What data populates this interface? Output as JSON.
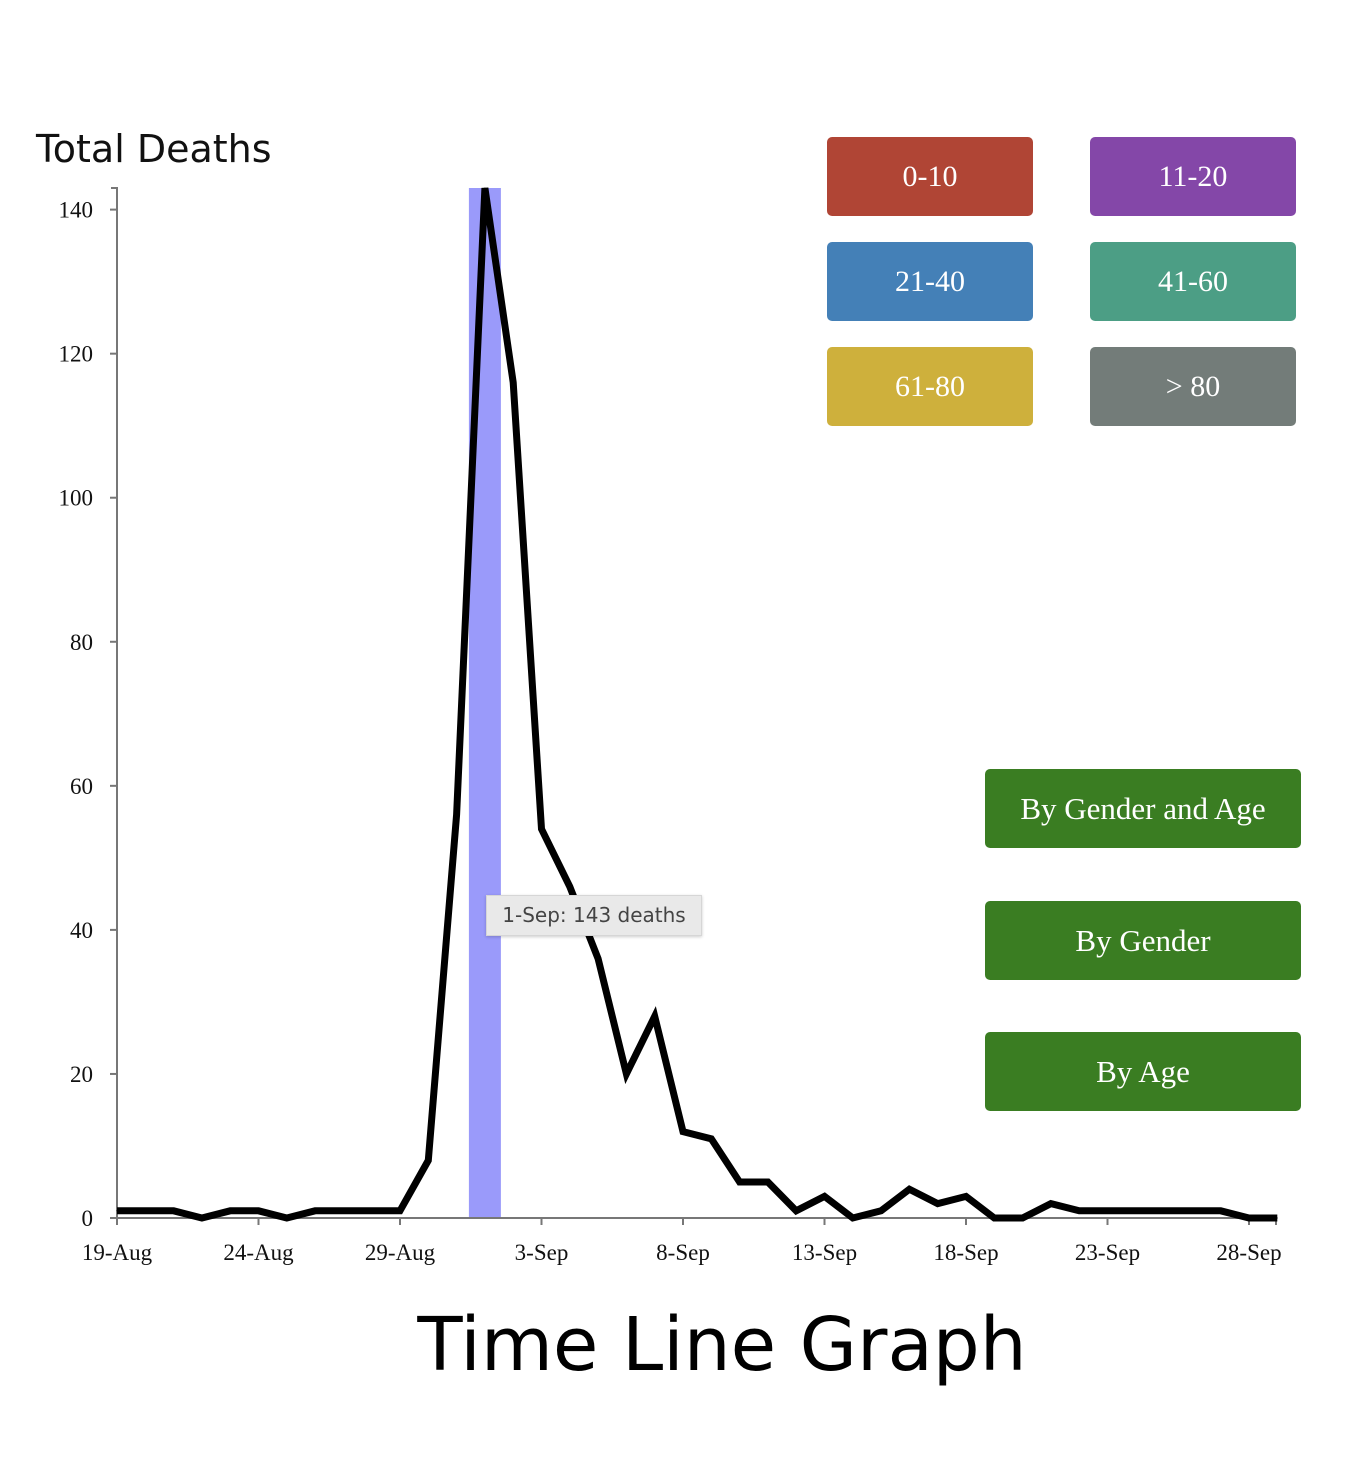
{
  "chart_data": {
    "type": "line",
    "ylabel": "Total Deaths",
    "ylim": [
      0,
      143
    ],
    "yticks": [
      0,
      20,
      40,
      60,
      80,
      100,
      120,
      140
    ],
    "xticks": [
      "19-Aug",
      "24-Aug",
      "29-Aug",
      "3-Sep",
      "8-Sep",
      "13-Sep",
      "18-Sep",
      "23-Sep",
      "28-Sep"
    ],
    "x": [
      "19-Aug",
      "20-Aug",
      "21-Aug",
      "22-Aug",
      "23-Aug",
      "24-Aug",
      "25-Aug",
      "26-Aug",
      "27-Aug",
      "28-Aug",
      "29-Aug",
      "30-Aug",
      "31-Aug",
      "1-Sep",
      "2-Sep",
      "3-Sep",
      "4-Sep",
      "5-Sep",
      "6-Sep",
      "7-Sep",
      "8-Sep",
      "9-Sep",
      "10-Sep",
      "11-Sep",
      "12-Sep",
      "13-Sep",
      "14-Sep",
      "15-Sep",
      "16-Sep",
      "17-Sep",
      "18-Sep",
      "19-Sep",
      "20-Sep",
      "21-Sep",
      "22-Sep",
      "23-Sep",
      "24-Sep",
      "25-Sep",
      "26-Sep",
      "27-Sep",
      "28-Sep",
      "29-Sep"
    ],
    "series": [
      {
        "values": [
          1,
          1,
          1,
          0,
          1,
          1,
          0,
          1,
          1,
          1,
          1,
          8,
          56,
          143,
          116,
          54,
          46,
          36,
          20,
          28,
          12,
          11,
          5,
          5,
          1,
          3,
          0,
          1,
          4,
          2,
          3,
          0,
          0,
          2,
          1,
          1,
          1,
          1,
          1,
          1,
          0,
          0
        ]
      }
    ],
    "highlight": {
      "x": "1-Sep",
      "value": 143
    },
    "tooltip": "1-Sep: 143 deaths",
    "grid": false
  },
  "legend": [
    {
      "label": "0-10",
      "color": "#b04535"
    },
    {
      "label": "11-20",
      "color": "#8447a8"
    },
    {
      "label": "21-40",
      "color": "#4480b7"
    },
    {
      "label": "41-60",
      "color": "#4c9e85"
    },
    {
      "label": "61-80",
      "color": "#ceb03c"
    },
    {
      "label": "> 80",
      "color": "#737c79"
    }
  ],
  "buttons": {
    "gender_age": "By Gender and Age",
    "gender": "By Gender",
    "age": "By Age",
    "color": "#3a7d22"
  },
  "page_title": "Time Line Graph"
}
